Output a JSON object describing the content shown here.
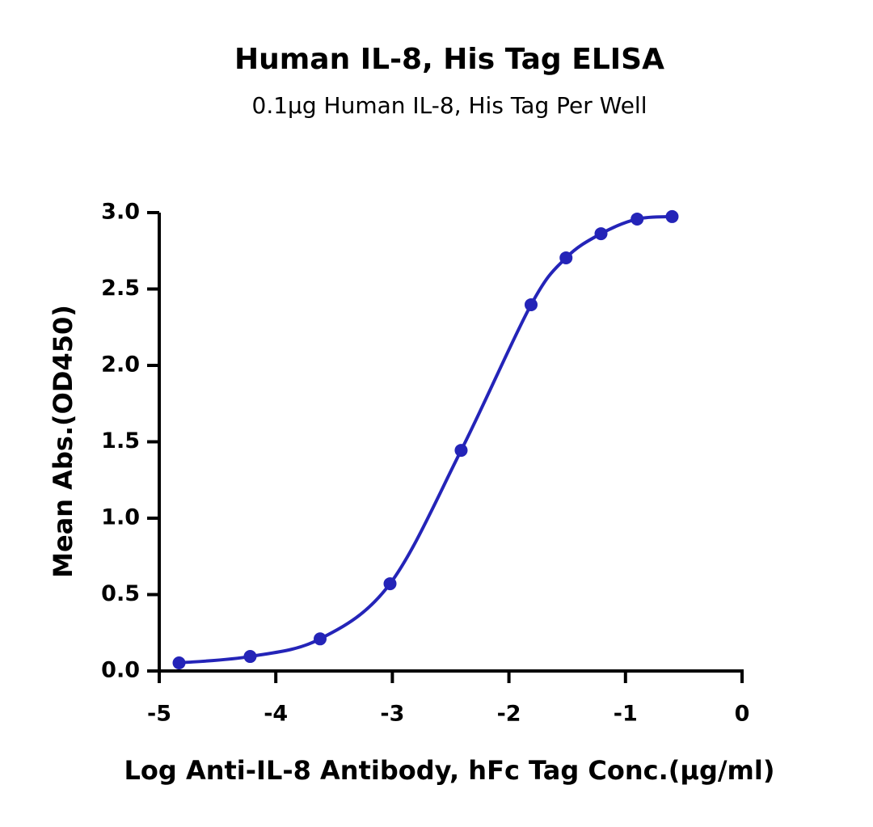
{
  "chart_data": {
    "type": "scatter",
    "title": "Human IL-8, His Tag ELISA",
    "subtitle": "0.1μg Human IL-8, His Tag Per Well",
    "x_label": "Log Anti-IL-8 Antibody, hFc Tag Conc.(μg/ml)",
    "y_label": "Mean Abs.(OD450)",
    "series": [
      {
        "color": "#2424b8",
        "x": [
          -4.83,
          -4.22,
          -3.62,
          -3.02,
          -2.41,
          -1.81,
          -1.51,
          -1.21,
          -0.9,
          -0.6
        ],
        "values": [
          0.053,
          0.095,
          0.21,
          0.571,
          1.444,
          2.397,
          2.704,
          2.862,
          2.958,
          2.974
        ]
      }
    ],
    "xlim": [
      -5,
      0
    ],
    "xticks": [
      -5,
      -4,
      -3,
      -2,
      -1,
      0
    ],
    "ylim": [
      0,
      3
    ],
    "yticks": [
      {
        "value": 0,
        "label": "0.0"
      },
      0.5,
      {
        "value": 1,
        "label": "1.0"
      },
      1.5,
      {
        "value": 2,
        "label": "2.0"
      },
      2.5,
      {
        "value": 3,
        "label": "3.0"
      }
    ]
  }
}
